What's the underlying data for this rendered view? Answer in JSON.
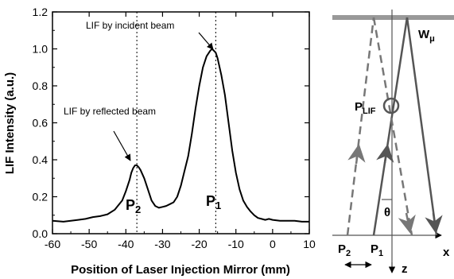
{
  "chart_data": {
    "type": "line",
    "xlabel": "Position of Laser Injection Mirror (mm)",
    "ylabel": "LIF Intensity (a.u.)",
    "xlim": [
      -60,
      10
    ],
    "ylim": [
      0.0,
      1.2
    ],
    "x_ticks": [
      -60,
      -50,
      -40,
      -30,
      -20,
      -10,
      0,
      10
    ],
    "x_tick_labels": [
      "-60",
      "-50",
      "-40",
      "-30",
      "-20",
      "-10",
      "0",
      "10"
    ],
    "y_ticks": [
      0.0,
      0.2,
      0.4,
      0.6,
      0.8,
      1.0,
      1.2
    ],
    "y_tick_labels": [
      "0.0",
      "0.2",
      "0.4",
      "0.6",
      "0.8",
      "1.0",
      "1.2"
    ],
    "grid": false,
    "series": [
      {
        "x": [
          -60,
          -57,
          -55,
          -53,
          -51,
          -49,
          -47,
          -45,
          -43,
          -41,
          -40,
          -39,
          -38.5,
          -38,
          -37.5,
          -37,
          -36.5,
          -36,
          -35,
          -34,
          -33,
          -32,
          -31,
          -30,
          -29,
          -28,
          -27,
          -26,
          -25,
          -24,
          -23,
          -22,
          -21,
          -20,
          -19,
          -18,
          -17,
          -16.5,
          -16,
          -15.5,
          -15,
          -14,
          -13,
          -12,
          -11,
          -10,
          -9,
          -8,
          -7,
          -6,
          -5,
          -4,
          -3,
          -2,
          -1,
          0,
          2,
          4,
          6,
          8,
          10
        ],
        "y": [
          0.07,
          0.065,
          0.07,
          0.075,
          0.08,
          0.09,
          0.095,
          0.105,
          0.13,
          0.18,
          0.23,
          0.29,
          0.33,
          0.355,
          0.37,
          0.37,
          0.36,
          0.345,
          0.3,
          0.24,
          0.18,
          0.15,
          0.14,
          0.145,
          0.15,
          0.16,
          0.17,
          0.2,
          0.26,
          0.34,
          0.42,
          0.54,
          0.68,
          0.8,
          0.9,
          0.96,
          0.99,
          1.0,
          0.99,
          0.98,
          0.95,
          0.86,
          0.75,
          0.6,
          0.45,
          0.33,
          0.24,
          0.18,
          0.145,
          0.12,
          0.1,
          0.085,
          0.08,
          0.075,
          0.08,
          0.075,
          0.07,
          0.07,
          0.07,
          0.065,
          0.065
        ]
      }
    ],
    "reference_lines_x": [
      -37,
      -15.5
    ],
    "annotations": [
      {
        "text": "LIF by incident beam",
        "x": -15.5,
        "y": 1.0
      },
      {
        "text": "LIF by reflected beam",
        "x": -37,
        "y": 0.37
      }
    ],
    "peak_labels": [
      {
        "main": "P",
        "sub": "2",
        "x": -37,
        "y": 0.37
      },
      {
        "main": "P",
        "sub": "1",
        "x": -15.5,
        "y": 1.0
      }
    ]
  },
  "diagram": {
    "mirror_label": "W",
    "mirror_sub": "μ",
    "point_label": "P",
    "point_sub": "LIF",
    "angle_label": "θ",
    "x_axis_label": "x",
    "z_axis_label": "z",
    "p2_main": "P",
    "p2_sub": "2",
    "p1_main": "P",
    "p1_sub": "1"
  }
}
